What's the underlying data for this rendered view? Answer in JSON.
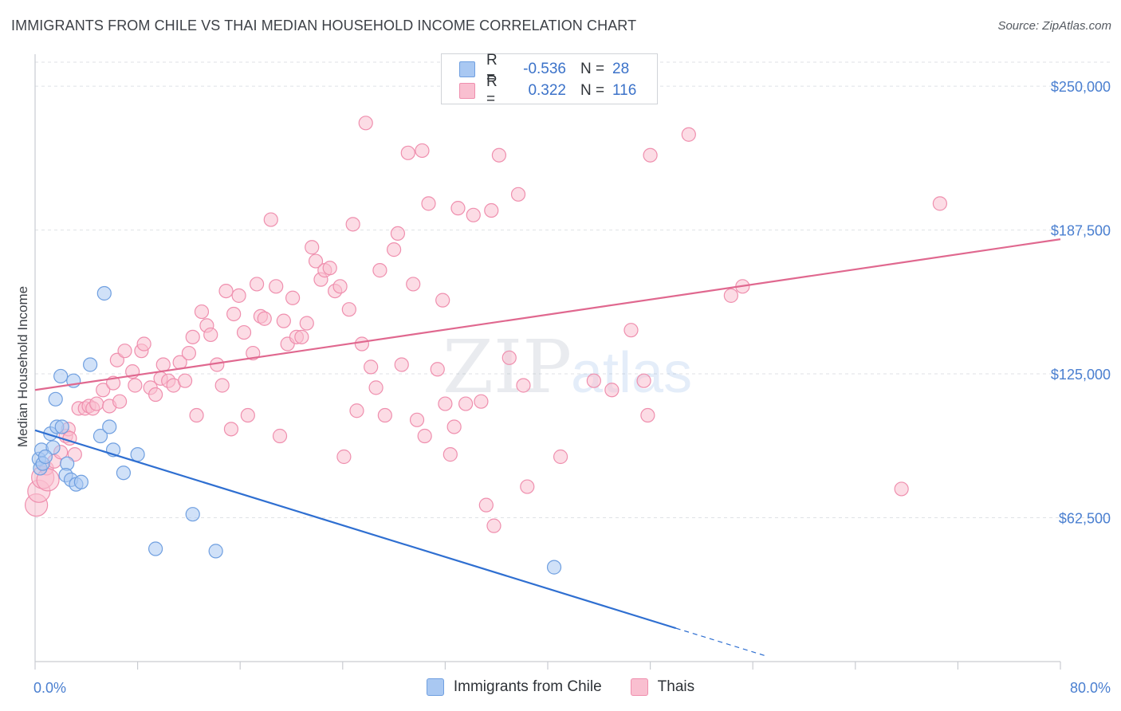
{
  "title": "IMMIGRANTS FROM CHILE VS THAI MEDIAN HOUSEHOLD INCOME CORRELATION CHART",
  "source": "Source: ZipAtlas.com",
  "watermark": {
    "zip": "ZIP",
    "atlas": "atlas"
  },
  "legend": {
    "r_label": "R =",
    "n_label": "N =",
    "rows": [
      {
        "r": "-0.536",
        "n": "28",
        "color": "#a9c8f2",
        "stroke": "#6f9fe0"
      },
      {
        "r": "0.322",
        "n": "116",
        "color": "#f9bfd0",
        "stroke": "#ef8fae"
      }
    ]
  },
  "chart_data": {
    "type": "scatter",
    "title": "IMMIGRANTS FROM CHILE VS THAI MEDIAN HOUSEHOLD INCOME CORRELATION CHART",
    "xlabel": "",
    "ylabel": "Median Household Income",
    "xlim": [
      0,
      80
    ],
    "ylim": [
      0,
      262500
    ],
    "x_tick_labels": [
      "0.0%",
      "80.0%"
    ],
    "y_ticks": [
      62500,
      125000,
      187500,
      250000
    ],
    "y_tick_labels": [
      "$62,500",
      "$125,000",
      "$187,500",
      "$250,000"
    ],
    "grid": true,
    "legend_position": "top-center",
    "series": [
      {
        "name": "Immigrants from Chile",
        "color": "#a9c8f2",
        "stroke": "#6f9fe0",
        "line_color": "#2f6fd1",
        "points": [
          [
            0.3,
            88000
          ],
          [
            0.4,
            84000
          ],
          [
            0.5,
            92000
          ],
          [
            0.6,
            86000
          ],
          [
            1.2,
            99000
          ],
          [
            1.4,
            93000
          ],
          [
            1.6,
            114000
          ],
          [
            1.7,
            102000
          ],
          [
            2.0,
            124000
          ],
          [
            2.1,
            102000
          ],
          [
            2.5,
            86000
          ],
          [
            2.4,
            81000
          ],
          [
            2.8,
            79000
          ],
          [
            3.0,
            122000
          ],
          [
            3.2,
            77000
          ],
          [
            3.6,
            78000
          ],
          [
            4.3,
            129000
          ],
          [
            5.1,
            98000
          ],
          [
            5.4,
            160000
          ],
          [
            5.8,
            102000
          ],
          [
            6.1,
            92000
          ],
          [
            6.9,
            82000
          ],
          [
            8.0,
            90000
          ],
          [
            9.4,
            49000
          ],
          [
            12.3,
            64000
          ],
          [
            14.1,
            48000
          ],
          [
            40.5,
            41000
          ],
          [
            0.8,
            89000
          ]
        ],
        "trend": {
          "x0": 0,
          "y0": 100500,
          "x1": 50,
          "y1": 14500,
          "dash_to_x": 57,
          "dash_to_y": 2500
        }
      },
      {
        "name": "Thais",
        "color": "#f9bfd0",
        "stroke": "#ef8fae",
        "line_color": "#e0688f",
        "points": [
          [
            0.1,
            68000
          ],
          [
            0.3,
            74000
          ],
          [
            0.6,
            80000
          ],
          [
            0.9,
            84000
          ],
          [
            1.5,
            87000
          ],
          [
            2.0,
            91000
          ],
          [
            2.4,
            98000
          ],
          [
            2.6,
            101000
          ],
          [
            3.1,
            90000
          ],
          [
            3.4,
            110000
          ],
          [
            3.9,
            110000
          ],
          [
            4.2,
            111000
          ],
          [
            4.5,
            110000
          ],
          [
            4.8,
            112000
          ],
          [
            5.3,
            118000
          ],
          [
            5.8,
            111000
          ],
          [
            6.1,
            121000
          ],
          [
            6.4,
            131000
          ],
          [
            6.6,
            113000
          ],
          [
            7.0,
            135000
          ],
          [
            7.6,
            126000
          ],
          [
            7.8,
            120000
          ],
          [
            8.3,
            135000
          ],
          [
            8.5,
            138000
          ],
          [
            9.0,
            119000
          ],
          [
            9.4,
            116000
          ],
          [
            9.8,
            123000
          ],
          [
            10.0,
            129000
          ],
          [
            10.4,
            122000
          ],
          [
            10.8,
            120000
          ],
          [
            11.3,
            130000
          ],
          [
            11.7,
            122000
          ],
          [
            12.0,
            134000
          ],
          [
            12.3,
            141000
          ],
          [
            12.6,
            107000
          ],
          [
            13.0,
            152000
          ],
          [
            13.4,
            146000
          ],
          [
            13.7,
            142000
          ],
          [
            14.2,
            129000
          ],
          [
            14.6,
            120000
          ],
          [
            14.9,
            161000
          ],
          [
            15.3,
            101000
          ],
          [
            15.5,
            151000
          ],
          [
            15.9,
            159000
          ],
          [
            16.3,
            143000
          ],
          [
            16.6,
            107000
          ],
          [
            17.0,
            134000
          ],
          [
            17.3,
            164000
          ],
          [
            17.6,
            150000
          ],
          [
            17.9,
            149000
          ],
          [
            18.4,
            192000
          ],
          [
            18.8,
            163000
          ],
          [
            19.1,
            98000
          ],
          [
            19.4,
            148000
          ],
          [
            19.7,
            138000
          ],
          [
            20.1,
            158000
          ],
          [
            20.4,
            141000
          ],
          [
            20.8,
            141000
          ],
          [
            21.2,
            147000
          ],
          [
            21.6,
            180000
          ],
          [
            21.9,
            174000
          ],
          [
            22.3,
            166000
          ],
          [
            22.6,
            170000
          ],
          [
            23.0,
            171000
          ],
          [
            23.4,
            161000
          ],
          [
            23.8,
            163000
          ],
          [
            24.1,
            89000
          ],
          [
            24.5,
            153000
          ],
          [
            24.8,
            190000
          ],
          [
            25.1,
            109000
          ],
          [
            25.5,
            138000
          ],
          [
            25.8,
            234000
          ],
          [
            26.2,
            128000
          ],
          [
            26.6,
            119000
          ],
          [
            26.9,
            170000
          ],
          [
            27.3,
            107000
          ],
          [
            28.0,
            179000
          ],
          [
            28.3,
            186000
          ],
          [
            28.6,
            129000
          ],
          [
            29.1,
            221000
          ],
          [
            29.5,
            164000
          ],
          [
            29.8,
            105000
          ],
          [
            30.2,
            222000
          ],
          [
            30.4,
            98000
          ],
          [
            30.7,
            199000
          ],
          [
            31.4,
            127000
          ],
          [
            31.8,
            157000
          ],
          [
            32.0,
            112000
          ],
          [
            32.4,
            90000
          ],
          [
            32.7,
            102000
          ],
          [
            33.0,
            197000
          ],
          [
            33.6,
            112000
          ],
          [
            34.2,
            194000
          ],
          [
            34.8,
            113000
          ],
          [
            35.2,
            68000
          ],
          [
            35.6,
            196000
          ],
          [
            35.8,
            59000
          ],
          [
            36.2,
            220000
          ],
          [
            37.0,
            132000
          ],
          [
            37.7,
            203000
          ],
          [
            38.1,
            120000
          ],
          [
            38.4,
            76000
          ],
          [
            41.0,
            89000
          ],
          [
            43.6,
            122000
          ],
          [
            45.0,
            118000
          ],
          [
            46.5,
            144000
          ],
          [
            47.5,
            122000
          ],
          [
            47.8,
            107000
          ],
          [
            48.0,
            220000
          ],
          [
            51.0,
            229000
          ],
          [
            54.3,
            159000
          ],
          [
            55.2,
            163000
          ],
          [
            67.6,
            75000
          ],
          [
            70.6,
            199000
          ],
          [
            2.7,
            97000
          ],
          [
            1.0,
            79000
          ]
        ],
        "trend": {
          "x0": 0,
          "y0": 118000,
          "x1": 80,
          "y1": 183500
        }
      }
    ]
  }
}
